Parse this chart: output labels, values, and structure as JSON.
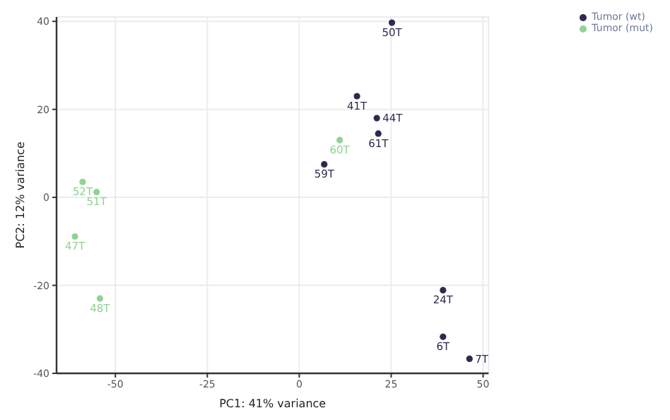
{
  "chart_data": {
    "type": "scatter",
    "xlabel": "PC1: 41% variance",
    "ylabel": "PC2: 12% variance",
    "xlim": [
      -66,
      51.5
    ],
    "ylim": [
      -40,
      41
    ],
    "xticks": [
      -50,
      -25,
      0,
      25,
      50
    ],
    "yticks": [
      -40,
      -20,
      0,
      20,
      40
    ],
    "grid": true,
    "legend": "top right",
    "marker": "circle",
    "series": [
      {
        "name": "Tumor (wt)",
        "color": "#2e2a4f",
        "x": [
          25.2,
          15.7,
          21.1,
          21.5,
          6.8,
          39.1,
          39.1,
          46.3
        ],
        "values": [
          39.7,
          23.0,
          18.0,
          14.5,
          7.5,
          -21.1,
          -31.7,
          -36.7
        ]
      },
      {
        "name": "Tumor (mut)",
        "color": "#93d193",
        "x": [
          11.0,
          -58.9,
          -55.1,
          -61.0,
          -54.2
        ],
        "values": [
          13.0,
          3.5,
          1.2,
          -8.9,
          -23.0
        ]
      }
    ],
    "annotations": [
      {
        "text": "50T",
        "x": 25.2,
        "y": 39.7
      },
      {
        "text": "41T",
        "x": 15.7,
        "y": 23.0
      },
      {
        "text": "44T",
        "x": 21.1,
        "y": 18.0
      },
      {
        "text": "61T",
        "x": 21.5,
        "y": 14.5
      },
      {
        "text": "59T",
        "x": 6.8,
        "y": 7.5
      },
      {
        "text": "24T",
        "x": 39.1,
        "y": -21.1
      },
      {
        "text": "6T",
        "x": 39.1,
        "y": -31.7
      },
      {
        "text": "7T",
        "x": 46.3,
        "y": -36.7
      },
      {
        "text": "60T",
        "x": 11.0,
        "y": 13.0
      },
      {
        "text": "52T",
        "x": -58.9,
        "y": 3.5
      },
      {
        "text": "51T",
        "x": -55.1,
        "y": 1.2
      },
      {
        "text": "47T",
        "x": -61.0,
        "y": -8.9
      },
      {
        "text": "48T",
        "x": -54.2,
        "y": -23.0
      }
    ]
  }
}
